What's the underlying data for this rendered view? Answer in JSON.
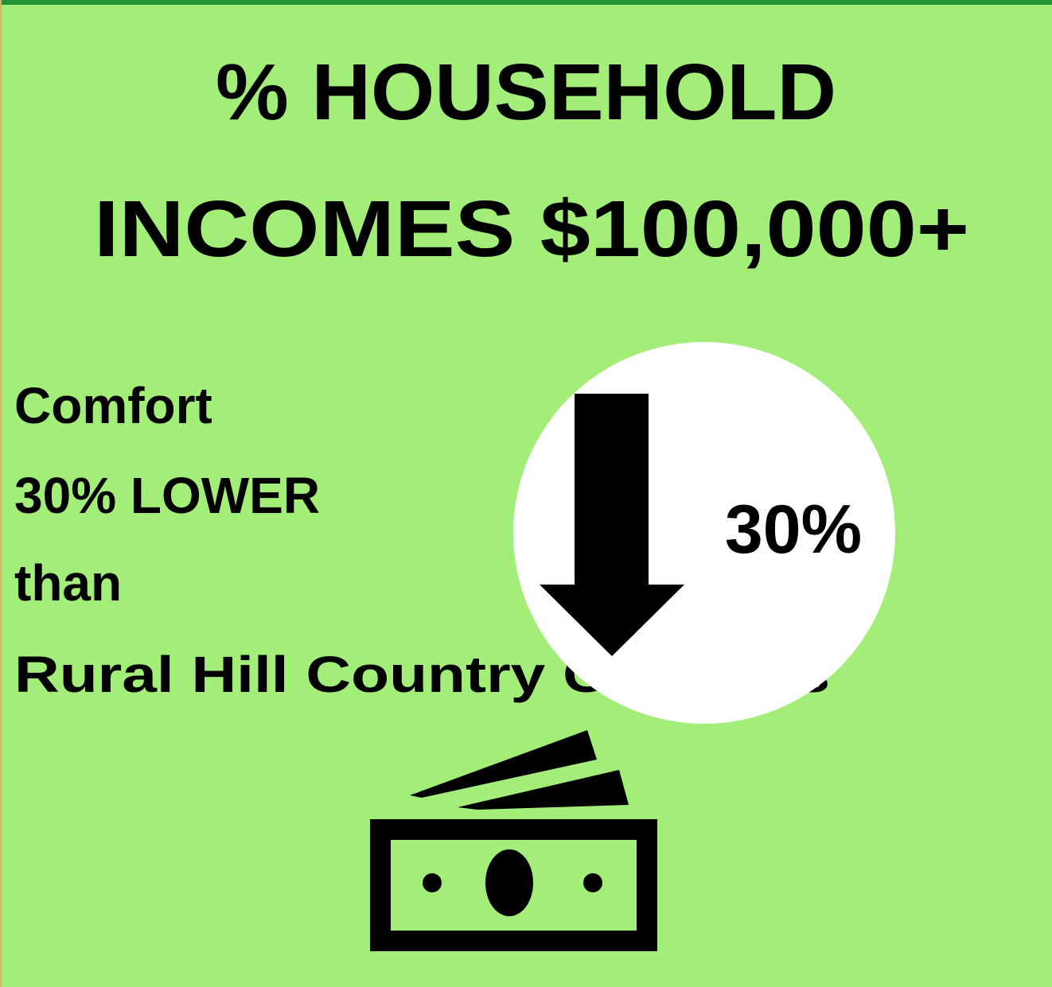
{
  "title": {
    "lines": [
      "% HOUSEHOLD",
      "INCOMES $100,000+"
    ]
  },
  "body": {
    "lines": [
      "Comfort",
      "30% LOWER",
      "than",
      "Rural Hill Country Counties"
    ]
  },
  "badge": {
    "label": "30%"
  }
}
